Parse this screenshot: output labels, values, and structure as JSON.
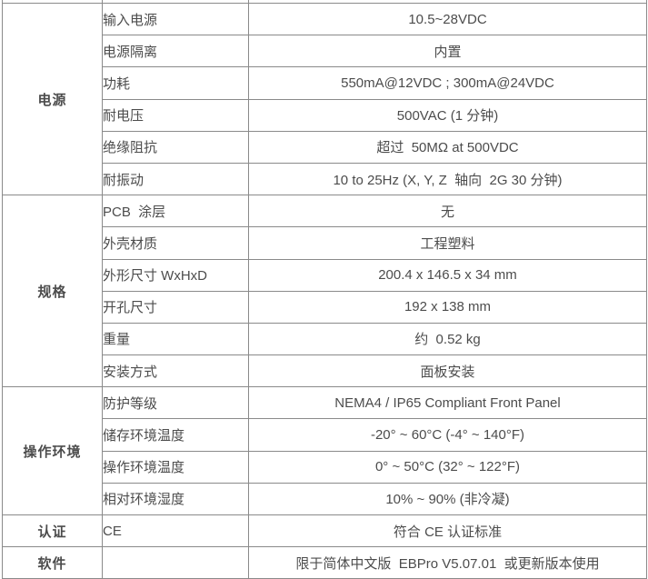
{
  "table": {
    "colors": {
      "border": "#8a8a8a",
      "text": "#4c4c4c",
      "background": "#ffffff"
    },
    "sections": [
      {
        "category": "电源",
        "rows": [
          {
            "name": "输入电源",
            "value": "10.5~28VDC"
          },
          {
            "name": "电源隔离",
            "value": "内置"
          },
          {
            "name": "功耗",
            "value": "550mA@12VDC ; 300mA@24VDC"
          },
          {
            "name": "耐电压",
            "value": "500VAC (1 分钟)"
          },
          {
            "name": "绝缘阻抗",
            "value": "超过  50MΩ at 500VDC"
          },
          {
            "name": "耐振动",
            "value": "10 to 25Hz (X, Y, Z  轴向  2G 30 分钟)"
          }
        ]
      },
      {
        "category": "规格",
        "rows": [
          {
            "name": "PCB  涂层",
            "value": "无"
          },
          {
            "name": "外壳材质",
            "value": "工程塑料"
          },
          {
            "name": "外形尺寸 WxHxD",
            "value": "200.4 x 146.5 x 34 mm"
          },
          {
            "name": "开孔尺寸",
            "value": "192 x 138 mm"
          },
          {
            "name": "重量",
            "value": "约  0.52 kg"
          },
          {
            "name": "安装方式",
            "value": "面板安装"
          }
        ]
      },
      {
        "category": "操作环境",
        "rows": [
          {
            "name": "防护等级",
            "value": "NEMA4 / IP65 Compliant Front Panel"
          },
          {
            "name": "储存环境温度",
            "value": "-20° ~ 60°C (-4° ~ 140°F)"
          },
          {
            "name": "操作环境温度",
            "value": "0° ~ 50°C (32° ~ 122°F)"
          },
          {
            "name": "相对环境湿度",
            "value": "10% ~ 90% (非冷凝)"
          }
        ]
      },
      {
        "category": "认证",
        "rows": [
          {
            "name": "CE",
            "value": "符合 CE 认证标准"
          }
        ]
      },
      {
        "category": "软件",
        "rows": [
          {
            "name": "",
            "value": "限于简体中文版  EBPro V5.07.01  或更新版本使用"
          }
        ]
      }
    ]
  }
}
